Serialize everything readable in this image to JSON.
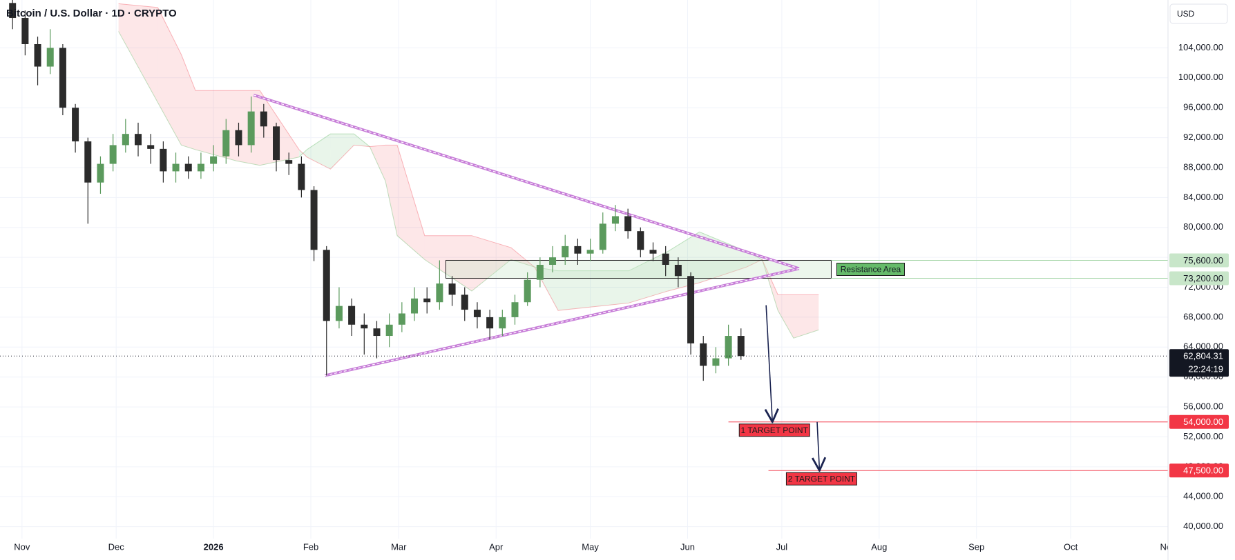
{
  "chart_data": {
    "type": "candlestick",
    "title": "Bitcoin / U.S. Dollar · 1D · CRYPTO",
    "currency": "USD",
    "xlim": [
      -7,
      365
    ],
    "ylim": [
      38400,
      110400
    ],
    "grid": true,
    "up_color": "#5b9a5d",
    "down_color": "#2b2b2b",
    "xticks": [
      {
        "value": 0,
        "label": "Nov"
      },
      {
        "value": 30,
        "label": "Dec"
      },
      {
        "value": 61,
        "label": "2026"
      },
      {
        "value": 92,
        "label": "Feb"
      },
      {
        "value": 120,
        "label": "Mar"
      },
      {
        "value": 151,
        "label": "Apr"
      },
      {
        "value": 181,
        "label": "May"
      },
      {
        "value": 212,
        "label": "Jun"
      },
      {
        "value": 242,
        "label": "Jul"
      },
      {
        "value": 273,
        "label": "Aug"
      },
      {
        "value": 304,
        "label": "Sep"
      },
      {
        "value": 334,
        "label": "Oct"
      },
      {
        "value": 365,
        "label": "Nov"
      }
    ],
    "yticks": [
      {
        "value": 40000,
        "label": "40,000.00"
      },
      {
        "value": 44000,
        "label": "44,000.00"
      },
      {
        "value": 48000,
        "label": "48,000.00"
      },
      {
        "value": 52000,
        "label": "52,000.00"
      },
      {
        "value": 56000,
        "label": "56,000.00"
      },
      {
        "value": 60000,
        "label": "60,000.00"
      },
      {
        "value": 64000,
        "label": "64,000.00"
      },
      {
        "value": 68000,
        "label": "68,000.00"
      },
      {
        "value": 72000,
        "label": "72,000.00"
      },
      {
        "value": 76000,
        "label": "76,000.00"
      },
      {
        "value": 80000,
        "label": "80,000.00"
      },
      {
        "value": 84000,
        "label": "84,000.00"
      },
      {
        "value": 88000,
        "label": "88,000.00"
      },
      {
        "value": 92000,
        "label": "92,000.00"
      },
      {
        "value": 96000,
        "label": "96,000.00"
      },
      {
        "value": 100000,
        "label": "100,000.00"
      },
      {
        "value": 104000,
        "label": "104,000.00"
      }
    ],
    "x": [
      -3,
      1,
      5,
      9,
      13,
      17,
      21,
      25,
      29,
      33,
      37,
      41,
      45,
      49,
      53,
      57,
      61,
      65,
      69,
      73,
      77,
      81,
      85,
      89,
      93,
      97,
      101,
      105,
      109,
      113,
      117,
      121,
      125,
      129,
      133,
      137,
      141,
      145,
      149,
      153,
      157,
      161,
      165,
      169,
      173,
      177,
      181,
      185,
      189,
      193,
      197,
      201,
      205,
      209,
      213,
      217,
      221,
      225,
      229
    ],
    "open": [
      110000,
      108000,
      104500,
      101500,
      104000,
      96000,
      91500,
      86000,
      88500,
      91000,
      92500,
      91000,
      90500,
      87500,
      88500,
      87500,
      88500,
      89500,
      93000,
      91000,
      95500,
      93500,
      89000,
      88500,
      85000,
      77000,
      67500,
      69500,
      67000,
      66500,
      65500,
      67000,
      68500,
      70500,
      70000,
      72500,
      71000,
      69000,
      68000,
      66500,
      68000,
      70000,
      73000,
      75000,
      76000,
      77500,
      76500,
      77000,
      80500,
      81500,
      79500,
      77000,
      76500,
      75000,
      73500,
      64500,
      61500,
      62500,
      65500
    ],
    "high": [
      110800,
      109000,
      105500,
      106500,
      104500,
      96500,
      92000,
      89500,
      92500,
      94500,
      94000,
      92500,
      91500,
      90000,
      89500,
      90000,
      91000,
      94500,
      94000,
      97500,
      96500,
      94000,
      90000,
      89500,
      85500,
      77500,
      72000,
      70500,
      68500,
      67500,
      68500,
      70000,
      72000,
      72000,
      75600,
      73500,
      72000,
      70000,
      69000,
      69000,
      71000,
      74000,
      76000,
      77500,
      79000,
      78500,
      78500,
      82000,
      83000,
      82500,
      80000,
      78000,
      77500,
      76000,
      74000,
      65500,
      64000,
      67000,
      66500
    ],
    "low": [
      106500,
      103000,
      99000,
      100500,
      95000,
      90000,
      80500,
      84500,
      87500,
      90000,
      89500,
      88500,
      86000,
      86000,
      86500,
      86500,
      87500,
      88500,
      89500,
      90000,
      92000,
      87500,
      87000,
      84000,
      75500,
      60200,
      66500,
      65500,
      63000,
      62500,
      64000,
      66000,
      67500,
      68500,
      69000,
      69500,
      67500,
      66500,
      65000,
      65500,
      67000,
      69500,
      72000,
      74000,
      75000,
      75000,
      75500,
      76500,
      79500,
      78500,
      76000,
      75500,
      73500,
      72000,
      63000,
      59500,
      60500,
      61500,
      62300
    ],
    "close": [
      108000,
      104500,
      101500,
      104000,
      96000,
      91500,
      86000,
      88500,
      91000,
      92500,
      91000,
      90500,
      87500,
      88500,
      87500,
      88500,
      89500,
      93000,
      91000,
      95500,
      93500,
      89000,
      88500,
      85000,
      77000,
      67500,
      69500,
      67000,
      66500,
      65500,
      67000,
      68500,
      70500,
      70000,
      72500,
      71000,
      69000,
      68000,
      66500,
      68000,
      70000,
      73000,
      75000,
      76000,
      77500,
      76500,
      77000,
      80500,
      81500,
      79500,
      77000,
      76500,
      75000,
      73500,
      64500,
      61500,
      62500,
      65500,
      62804.31
    ],
    "cloud": {
      "up_color": "#4caf50",
      "down_color": "#f23645",
      "x": [
        30.75,
        43.25,
        50.75,
        55.25,
        68.25,
        75.75,
        88.25,
        90.75,
        98.25,
        105.75,
        110.75,
        115.75,
        119.5,
        128.25,
        143.25,
        155.75,
        163.25,
        170.75,
        193.25,
        205.75,
        215.75,
        230.75,
        235.75,
        240.75,
        245.75,
        253.75
      ],
      "span_a": [
        106200,
        96700,
        91000,
        90400,
        88900,
        88300,
        89400,
        90400,
        92500,
        92500,
        90800,
        86200,
        78900,
        75700,
        71500,
        75700,
        74700,
        74200,
        74200,
        76800,
        79400,
        76800,
        75700,
        68900,
        65200,
        66300
      ],
      "span_b": [
        109900,
        109400,
        103100,
        98300,
        98300,
        98300,
        90400,
        89400,
        87800,
        91000,
        90800,
        91000,
        91000,
        78900,
        78900,
        77300,
        74700,
        68900,
        69900,
        71500,
        72600,
        74700,
        75700,
        71000,
        71000,
        71000
      ]
    },
    "triangle": {
      "color": "#c77dd8",
      "upper": [
        [
          73.75,
          97700
        ],
        [
          247.5,
          74500
        ]
      ],
      "lower": [
        [
          96.5,
          60200
        ],
        [
          247.5,
          74500
        ]
      ]
    },
    "resistance": {
      "label": "Resistance Area",
      "x": [
        135,
        257.75
      ],
      "y": [
        73200,
        75600
      ],
      "levels": [
        {
          "value": 75600,
          "label": "75,600.00"
        },
        {
          "value": 73200,
          "label": "73,200.00"
        }
      ]
    },
    "last_price": {
      "value": 62804.31,
      "label": "62,804.31",
      "countdown": "22:24:19"
    },
    "targets": [
      {
        "label": "1 TARGET POINT",
        "value": 54000,
        "price_label": "54,000.00",
        "x_start": 225,
        "arrow": {
          "x": [
            237,
            239
          ],
          "y": [
            69600,
            54000
          ]
        }
      },
      {
        "label": "2 TARGET POINT",
        "value": 47500,
        "price_label": "47,500.00",
        "x_start": 237.75,
        "arrow": {
          "x": [
            253.25,
            254
          ],
          "y": [
            54000,
            47500
          ]
        }
      }
    ]
  }
}
